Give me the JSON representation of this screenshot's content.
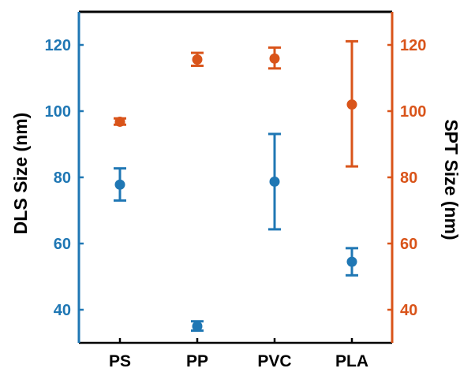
{
  "chart_data": {
    "type": "scatter",
    "categories": [
      "PS",
      "PP",
      "PVC",
      "PLA"
    ],
    "ylabel_left": "DLS Size (nm)",
    "ylabel_right": "SPT Size (nm)",
    "ylim": [
      30,
      130
    ],
    "yticks": [
      "40",
      "60",
      "80",
      "100",
      "120"
    ],
    "series": [
      {
        "axis": "left",
        "color": "#1f77b4",
        "points": [
          {
            "category": "PS",
            "y": 77.8,
            "lower": 73,
            "upper": 82.7
          },
          {
            "category": "PP",
            "y": 35,
            "lower": 33.7,
            "upper": 36.5
          },
          {
            "category": "PVC",
            "y": 78.7,
            "lower": 64.3,
            "upper": 93.1
          },
          {
            "category": "PLA",
            "y": 54.5,
            "lower": 50.4,
            "upper": 58.6
          }
        ]
      },
      {
        "axis": "right",
        "color": "#d9541a",
        "points": [
          {
            "category": "PS",
            "y": 96.8,
            "lower": 95.9,
            "upper": 97.8
          },
          {
            "category": "PP",
            "y": 115.6,
            "lower": 113.7,
            "upper": 117.6
          },
          {
            "category": "PVC",
            "y": 115.9,
            "lower": 112.9,
            "upper": 119.2
          },
          {
            "category": "PLA",
            "y": 102,
            "lower": 83.3,
            "upper": 121.1
          }
        ]
      }
    ],
    "left_axis_color": "#1f77b4",
    "right_axis_color": "#d9541a"
  }
}
